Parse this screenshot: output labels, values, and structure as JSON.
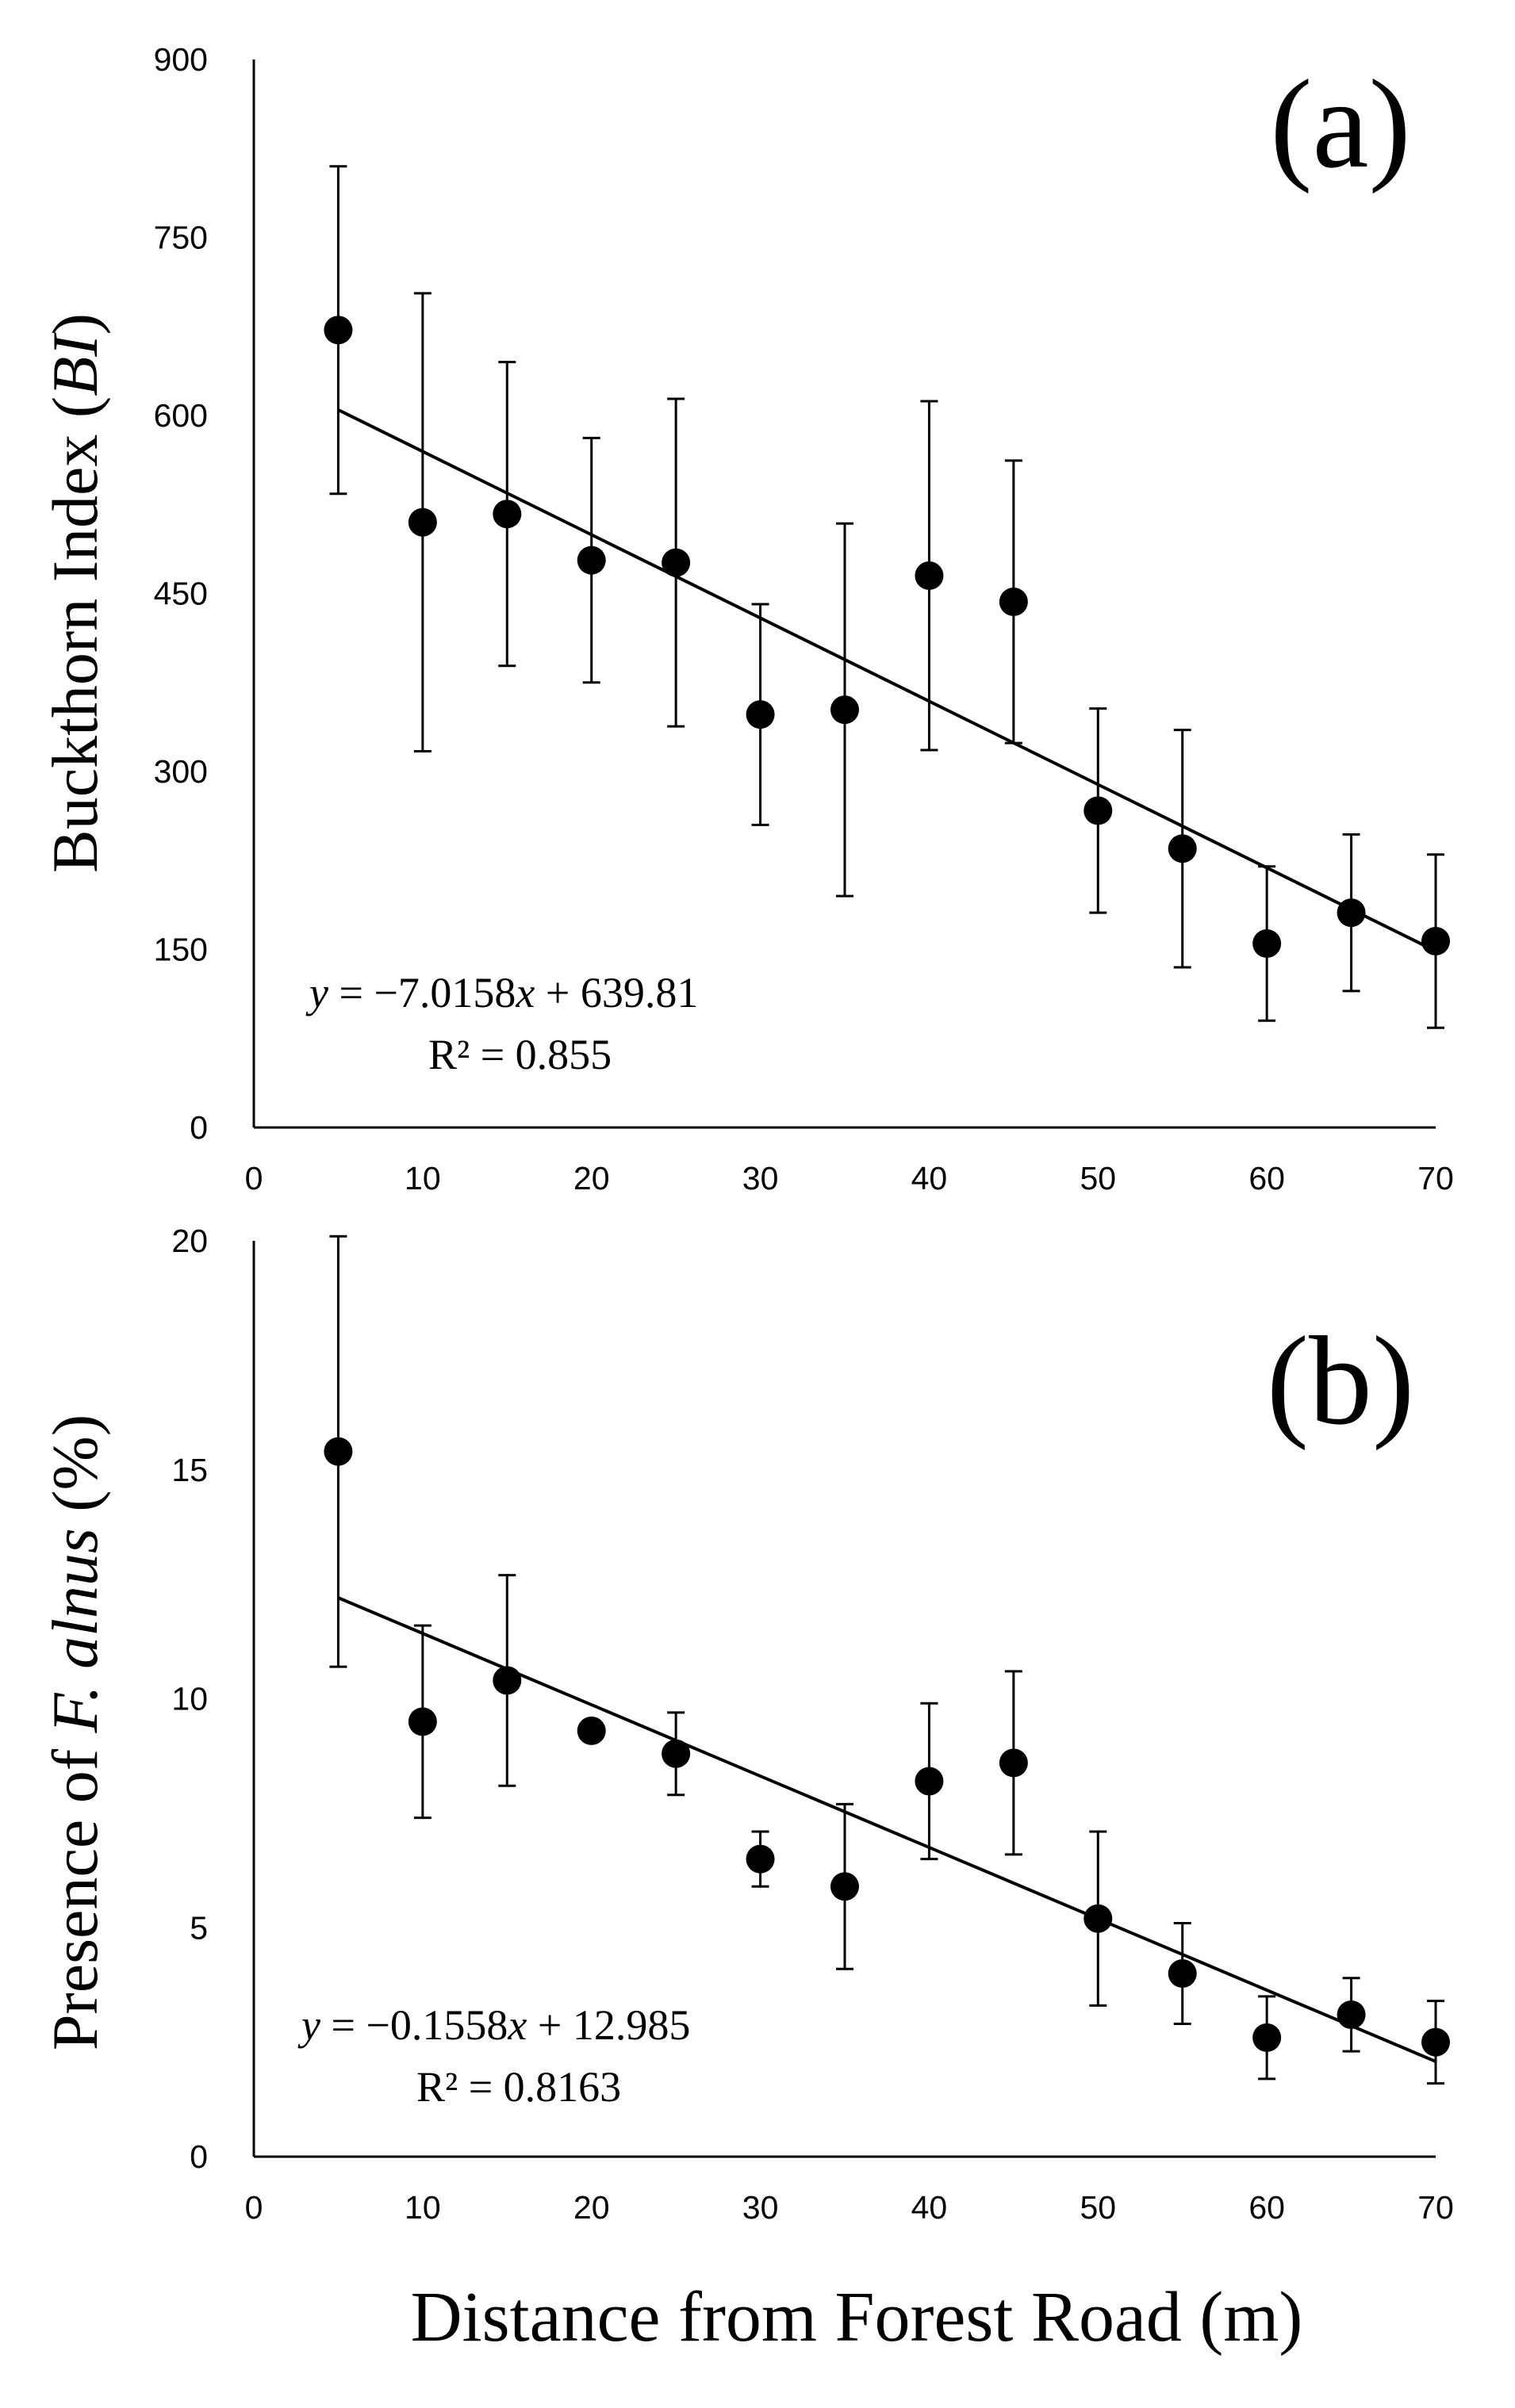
{
  "chart_data": [
    {
      "type": "scatter",
      "panel_label": "(a)",
      "xlabel": "",
      "ylabel": {
        "prefix": "Buckthorn Index (",
        "italic": "BI",
        "suffix": ")"
      },
      "xlim": [
        0,
        70
      ],
      "ylim": [
        0,
        900
      ],
      "xticks": [
        "0",
        "10",
        "20",
        "30",
        "40",
        "50",
        "60",
        "70"
      ],
      "yticks": [
        "0",
        "150",
        "300",
        "450",
        "600",
        "750",
        "900"
      ],
      "x": [
        5,
        10,
        15,
        20,
        25,
        30,
        35,
        40,
        45,
        50,
        55,
        60,
        65,
        70
      ],
      "y": [
        672,
        510,
        517,
        478,
        476,
        348,
        352,
        465,
        443,
        267,
        235,
        155,
        181,
        157
      ],
      "error": [
        138,
        193,
        128,
        103,
        138,
        93,
        157,
        147,
        119,
        86,
        100,
        65,
        66,
        73
      ],
      "trendline": {
        "slope": -7.0158,
        "intercept": 639.81
      },
      "equation": {
        "y": "y",
        "rhs": " = −7.0158",
        "x": "x",
        "tail": " + 639.81"
      },
      "r2": "R² = 0.855"
    },
    {
      "type": "scatter",
      "panel_label": "(b)",
      "xlabel": "Distance from Forest Road (m)",
      "ylabel": {
        "prefix": "Presence of ",
        "italic": "F. alnus",
        "suffix": " (%)"
      },
      "xlim": [
        0,
        70
      ],
      "ylim": [
        0,
        20
      ],
      "xticks": [
        "0",
        "10",
        "20",
        "30",
        "40",
        "50",
        "60",
        "70"
      ],
      "yticks": [
        "0",
        "5",
        "10",
        "15",
        "20"
      ],
      "x": [
        5,
        10,
        15,
        20,
        25,
        30,
        35,
        40,
        45,
        50,
        55,
        60,
        65,
        70
      ],
      "y": [
        15.4,
        9.5,
        10.4,
        9.3,
        8.8,
        6.5,
        5.9,
        8.2,
        8.6,
        5.2,
        4.0,
        2.6,
        3.1,
        2.5
      ],
      "error": [
        4.7,
        2.1,
        2.3,
        0.0,
        0.9,
        0.6,
        1.8,
        1.7,
        2.0,
        1.9,
        1.1,
        0.9,
        0.8,
        0.9
      ],
      "trendline": {
        "slope": -0.1558,
        "intercept": 12.985
      },
      "equation": {
        "y": "y",
        "rhs": " = −0.1558",
        "x": "x",
        "tail": " + 12.985"
      },
      "r2": "R² = 0.8163"
    }
  ]
}
